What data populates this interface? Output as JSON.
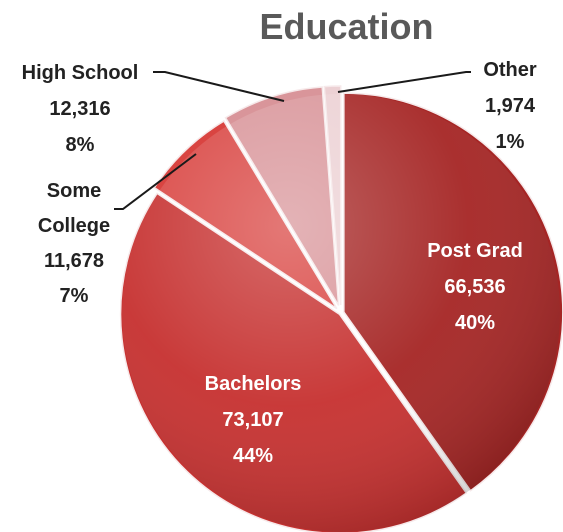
{
  "chart_data": {
    "type": "pie",
    "title": "Education",
    "slices": [
      {
        "label": "Post Grad",
        "value_text": "66,536",
        "percent_text": "40%",
        "value": 66536,
        "color": "#a52524"
      },
      {
        "label": "Bachelors",
        "value_text": "73,107",
        "percent_text": "44%",
        "value": 73107,
        "color": "#c6302f"
      },
      {
        "label": "Some College",
        "value_text": "11,678",
        "percent_text": "7%",
        "value": 11678,
        "color": "#d94441"
      },
      {
        "label": "High School",
        "value_text": "12,316",
        "percent_text": "8%",
        "value": 12316,
        "color": "#d9959a"
      },
      {
        "label": "Other",
        "value_text": "1,974",
        "percent_text": "1%",
        "value": 1974,
        "color": "#ecd1d4"
      }
    ]
  }
}
